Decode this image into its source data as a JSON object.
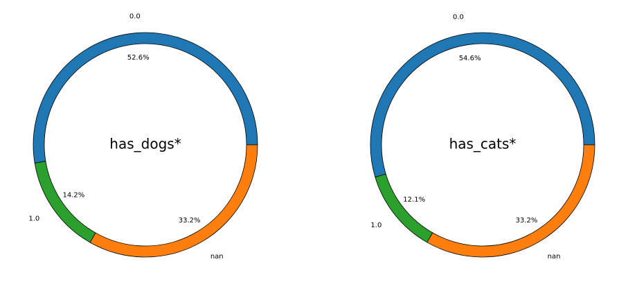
{
  "chart_data": [
    {
      "type": "donut",
      "title": "has_dogs*",
      "categories": [
        "0.0",
        "1.0",
        "nan"
      ],
      "values": [
        52.6,
        14.2,
        33.2
      ],
      "percent_labels": [
        "52.6%",
        "14.2%",
        "33.2%"
      ],
      "colors": [
        "#1f77b4",
        "#2ca02c",
        "#ff7f0e"
      ],
      "start_angle_deg": 0,
      "direction": "counterclockwise",
      "legend": "none",
      "grid": false
    },
    {
      "type": "donut",
      "title": "has_cats*",
      "categories": [
        "0.0",
        "1.0",
        "nan"
      ],
      "values": [
        54.6,
        12.1,
        33.2
      ],
      "percent_labels": [
        "54.6%",
        "12.1%",
        "33.2%"
      ],
      "colors": [
        "#1f77b4",
        "#2ca02c",
        "#ff7f0e"
      ],
      "start_angle_deg": 0,
      "direction": "counterclockwise",
      "legend": "none",
      "grid": false
    }
  ]
}
